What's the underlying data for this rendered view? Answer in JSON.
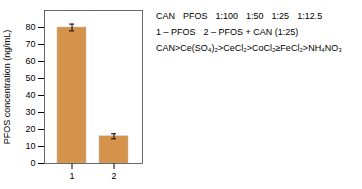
{
  "chart_data": {
    "type": "bar",
    "categories": [
      "1",
      "2"
    ],
    "values": [
      80,
      16
    ],
    "errors": [
      2.0,
      1.5
    ],
    "colors": [
      "#d4924a",
      "#d4924a"
    ],
    "ylabel": "PFOS concentration (ng/mL)",
    "ylim": [
      0,
      90
    ],
    "yticks": [
      0,
      10,
      20,
      30,
      40,
      50,
      60,
      70,
      80
    ],
    "annotations": [
      "CAN",
      "PFOS",
      "1:100",
      "1:50",
      "1:25",
      "1:12.5",
      "1 – PFOS",
      "2 – PFOS + CAN (1:25)",
      "CAN>Ce(SO₄)₂>CeCl₂>CoCl₂≥FeCl₂>NH₄NO₃"
    ]
  }
}
